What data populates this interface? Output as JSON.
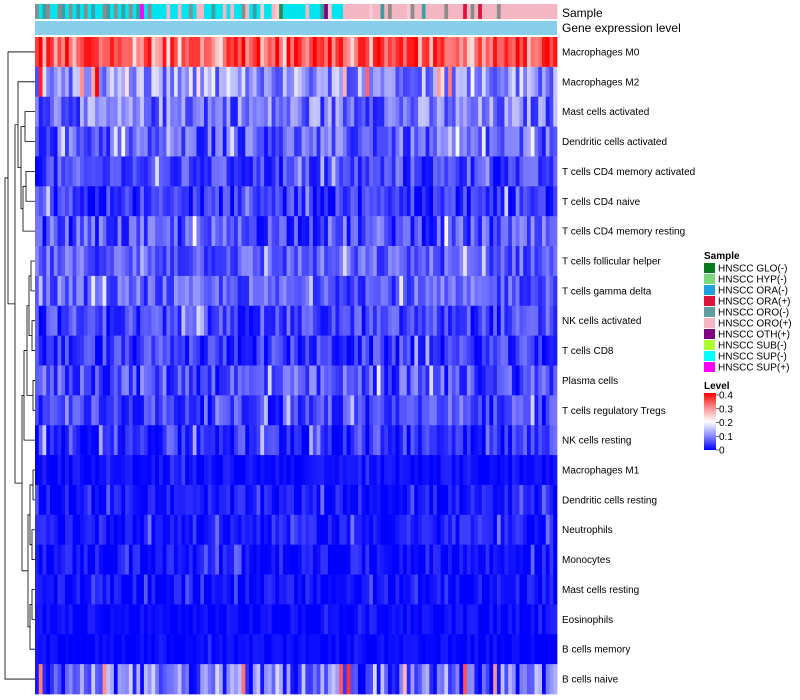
{
  "chart_data": {
    "type": "heatmap",
    "title": "",
    "n_samples": 139,
    "annotations": {
      "sample_label": "Sample",
      "expression_label": "Gene expression level",
      "sample_colors_sequence": [
        "gray",
        "cyan",
        "teal",
        "gray",
        "cyan",
        "cyan",
        "gray",
        "teal",
        "cyan",
        "gray",
        "cyan",
        "teal",
        "cyan",
        "gray",
        "cyan",
        "teal",
        "cyan",
        "cyan",
        "gray",
        "teal",
        "cyan",
        "gray",
        "cyan",
        "teal",
        "cyan",
        "gray",
        "cyan",
        "teal",
        "magenta",
        "cyan",
        "gray",
        "cyan",
        "cyan",
        "cyan",
        "cyan",
        "pink",
        "cyan",
        "cyan",
        "pink",
        "cyan",
        "cyan",
        "gray",
        "cyan",
        "pink",
        "pink",
        "cyan",
        "cyan",
        "teal",
        "cyan",
        "cyan",
        "pink",
        "cyan",
        "pink",
        "cyan",
        "cyan",
        "gray",
        "pink",
        "cyan",
        "teal",
        "cyan",
        "lightpink",
        "cyan",
        "cyan",
        "pink",
        "lightpink",
        "green",
        "cyan",
        "cyan",
        "cyan",
        "cyan",
        "cyan",
        "cyan",
        "pink",
        "cyan",
        "cyan",
        "cyan",
        "teal",
        "purple",
        "lightpink",
        "cyan",
        "cyan",
        "cyan",
        "pink",
        "pink",
        "pink",
        "pink",
        "pink",
        "pink",
        "pink",
        "lightpink",
        "pink",
        "pink",
        "teal",
        "pink",
        "gray",
        "pink",
        "pink",
        "pink",
        "pink",
        "lightpink",
        "gray",
        "pink",
        "pink",
        "teal",
        "pink",
        "pink",
        "pink",
        "pink",
        "pink",
        "gray",
        "pink",
        "pink",
        "pink",
        "pink",
        "crimson",
        "pink",
        "gray",
        "pink",
        "crimson",
        "pink",
        "pink",
        "pink",
        "pink",
        "gray",
        "pink",
        "pink",
        "pink",
        "pink",
        "pink",
        "pink",
        "pink",
        "pink",
        "pink",
        "pink",
        "pink",
        "pink",
        "pink",
        "pink",
        "pink"
      ]
    },
    "rows": [
      {
        "name": "Macrophages M0",
        "mean": 0.32,
        "spread": 0.1,
        "hot": 0.25
      },
      {
        "name": "Macrophages M2",
        "mean": 0.12,
        "spread": 0.07,
        "hot": 0.04
      },
      {
        "name": "Mast cells activated",
        "mean": 0.09,
        "spread": 0.07,
        "hot": 0.0
      },
      {
        "name": "Dendritic cells activated",
        "mean": 0.07,
        "spread": 0.06,
        "hot": 0.0
      },
      {
        "name": "T cells CD4 memory activated",
        "mean": 0.05,
        "spread": 0.05,
        "hot": 0.0
      },
      {
        "name": "T cells CD4 naive",
        "mean": 0.04,
        "spread": 0.05,
        "hot": 0.01
      },
      {
        "name": "T cells CD4 memory resting",
        "mean": 0.06,
        "spread": 0.06,
        "hot": 0.0
      },
      {
        "name": "T cells follicular helper",
        "mean": 0.07,
        "spread": 0.05,
        "hot": 0.0
      },
      {
        "name": "T cells gamma delta",
        "mean": 0.07,
        "spread": 0.05,
        "hot": 0.0
      },
      {
        "name": "NK cells activated",
        "mean": 0.05,
        "spread": 0.05,
        "hot": 0.0
      },
      {
        "name": "T cells CD8",
        "mean": 0.04,
        "spread": 0.05,
        "hot": 0.0
      },
      {
        "name": "Plasma cells",
        "mean": 0.06,
        "spread": 0.06,
        "hot": 0.0
      },
      {
        "name": "T cells regulatory  Tregs",
        "mean": 0.05,
        "spread": 0.05,
        "hot": 0.0
      },
      {
        "name": "NK cells resting",
        "mean": 0.04,
        "spread": 0.05,
        "hot": 0.0
      },
      {
        "name": "Macrophages M1",
        "mean": 0.01,
        "spread": 0.02,
        "hot": 0.0
      },
      {
        "name": "Dendritic cells resting",
        "mean": 0.015,
        "spread": 0.03,
        "hot": 0.0
      },
      {
        "name": "Neutrophils",
        "mean": 0.02,
        "spread": 0.03,
        "hot": 0.0
      },
      {
        "name": "Monocytes",
        "mean": 0.015,
        "spread": 0.03,
        "hot": 0.0
      },
      {
        "name": "Mast cells resting",
        "mean": 0.01,
        "spread": 0.03,
        "hot": 0.0
      },
      {
        "name": "Eosinophils",
        "mean": 0.005,
        "spread": 0.02,
        "hot": 0.0
      },
      {
        "name": "B cells memory",
        "mean": 0.005,
        "spread": 0.015,
        "hot": 0.0
      },
      {
        "name": "B cells naive",
        "mean": 0.08,
        "spread": 0.09,
        "hot": 0.05
      }
    ],
    "legend": {
      "sample_title": "Sample",
      "sample_items": [
        {
          "label": "HNSCC GLO(-)",
          "color": "#0b7a1e"
        },
        {
          "label": "HNSCC HYP(-)",
          "color": "#7dd87d"
        },
        {
          "label": "HNSCC ORA(-)",
          "color": "#1fa0e0"
        },
        {
          "label": "HNSCC ORA(+)",
          "color": "#dc143c"
        },
        {
          "label": "HNSCC ORO(-)",
          "color": "#5f9ea0"
        },
        {
          "label": "HNSCC ORO(+)",
          "color": "#f4b6c2"
        },
        {
          "label": "HNSCC OTH(+)",
          "color": "#800080"
        },
        {
          "label": "HNSCC SUB(-)",
          "color": "#adff2f"
        },
        {
          "label": "HNSCC SUP(-)",
          "color": "#00ffff"
        },
        {
          "label": "HNSCC SUP(+)",
          "color": "#ff00ff"
        }
      ],
      "level_title": "Level",
      "level_ticks": [
        "0.4",
        "0.3",
        "0.2",
        "0.1",
        "0"
      ],
      "level_range": [
        0,
        0.4
      ]
    },
    "colors": {
      "low": "#0000ff",
      "mid": "#ffffff",
      "high": "#ff0000",
      "expression_bar": "#87ceeb",
      "dendrogram": "#000000"
    }
  }
}
